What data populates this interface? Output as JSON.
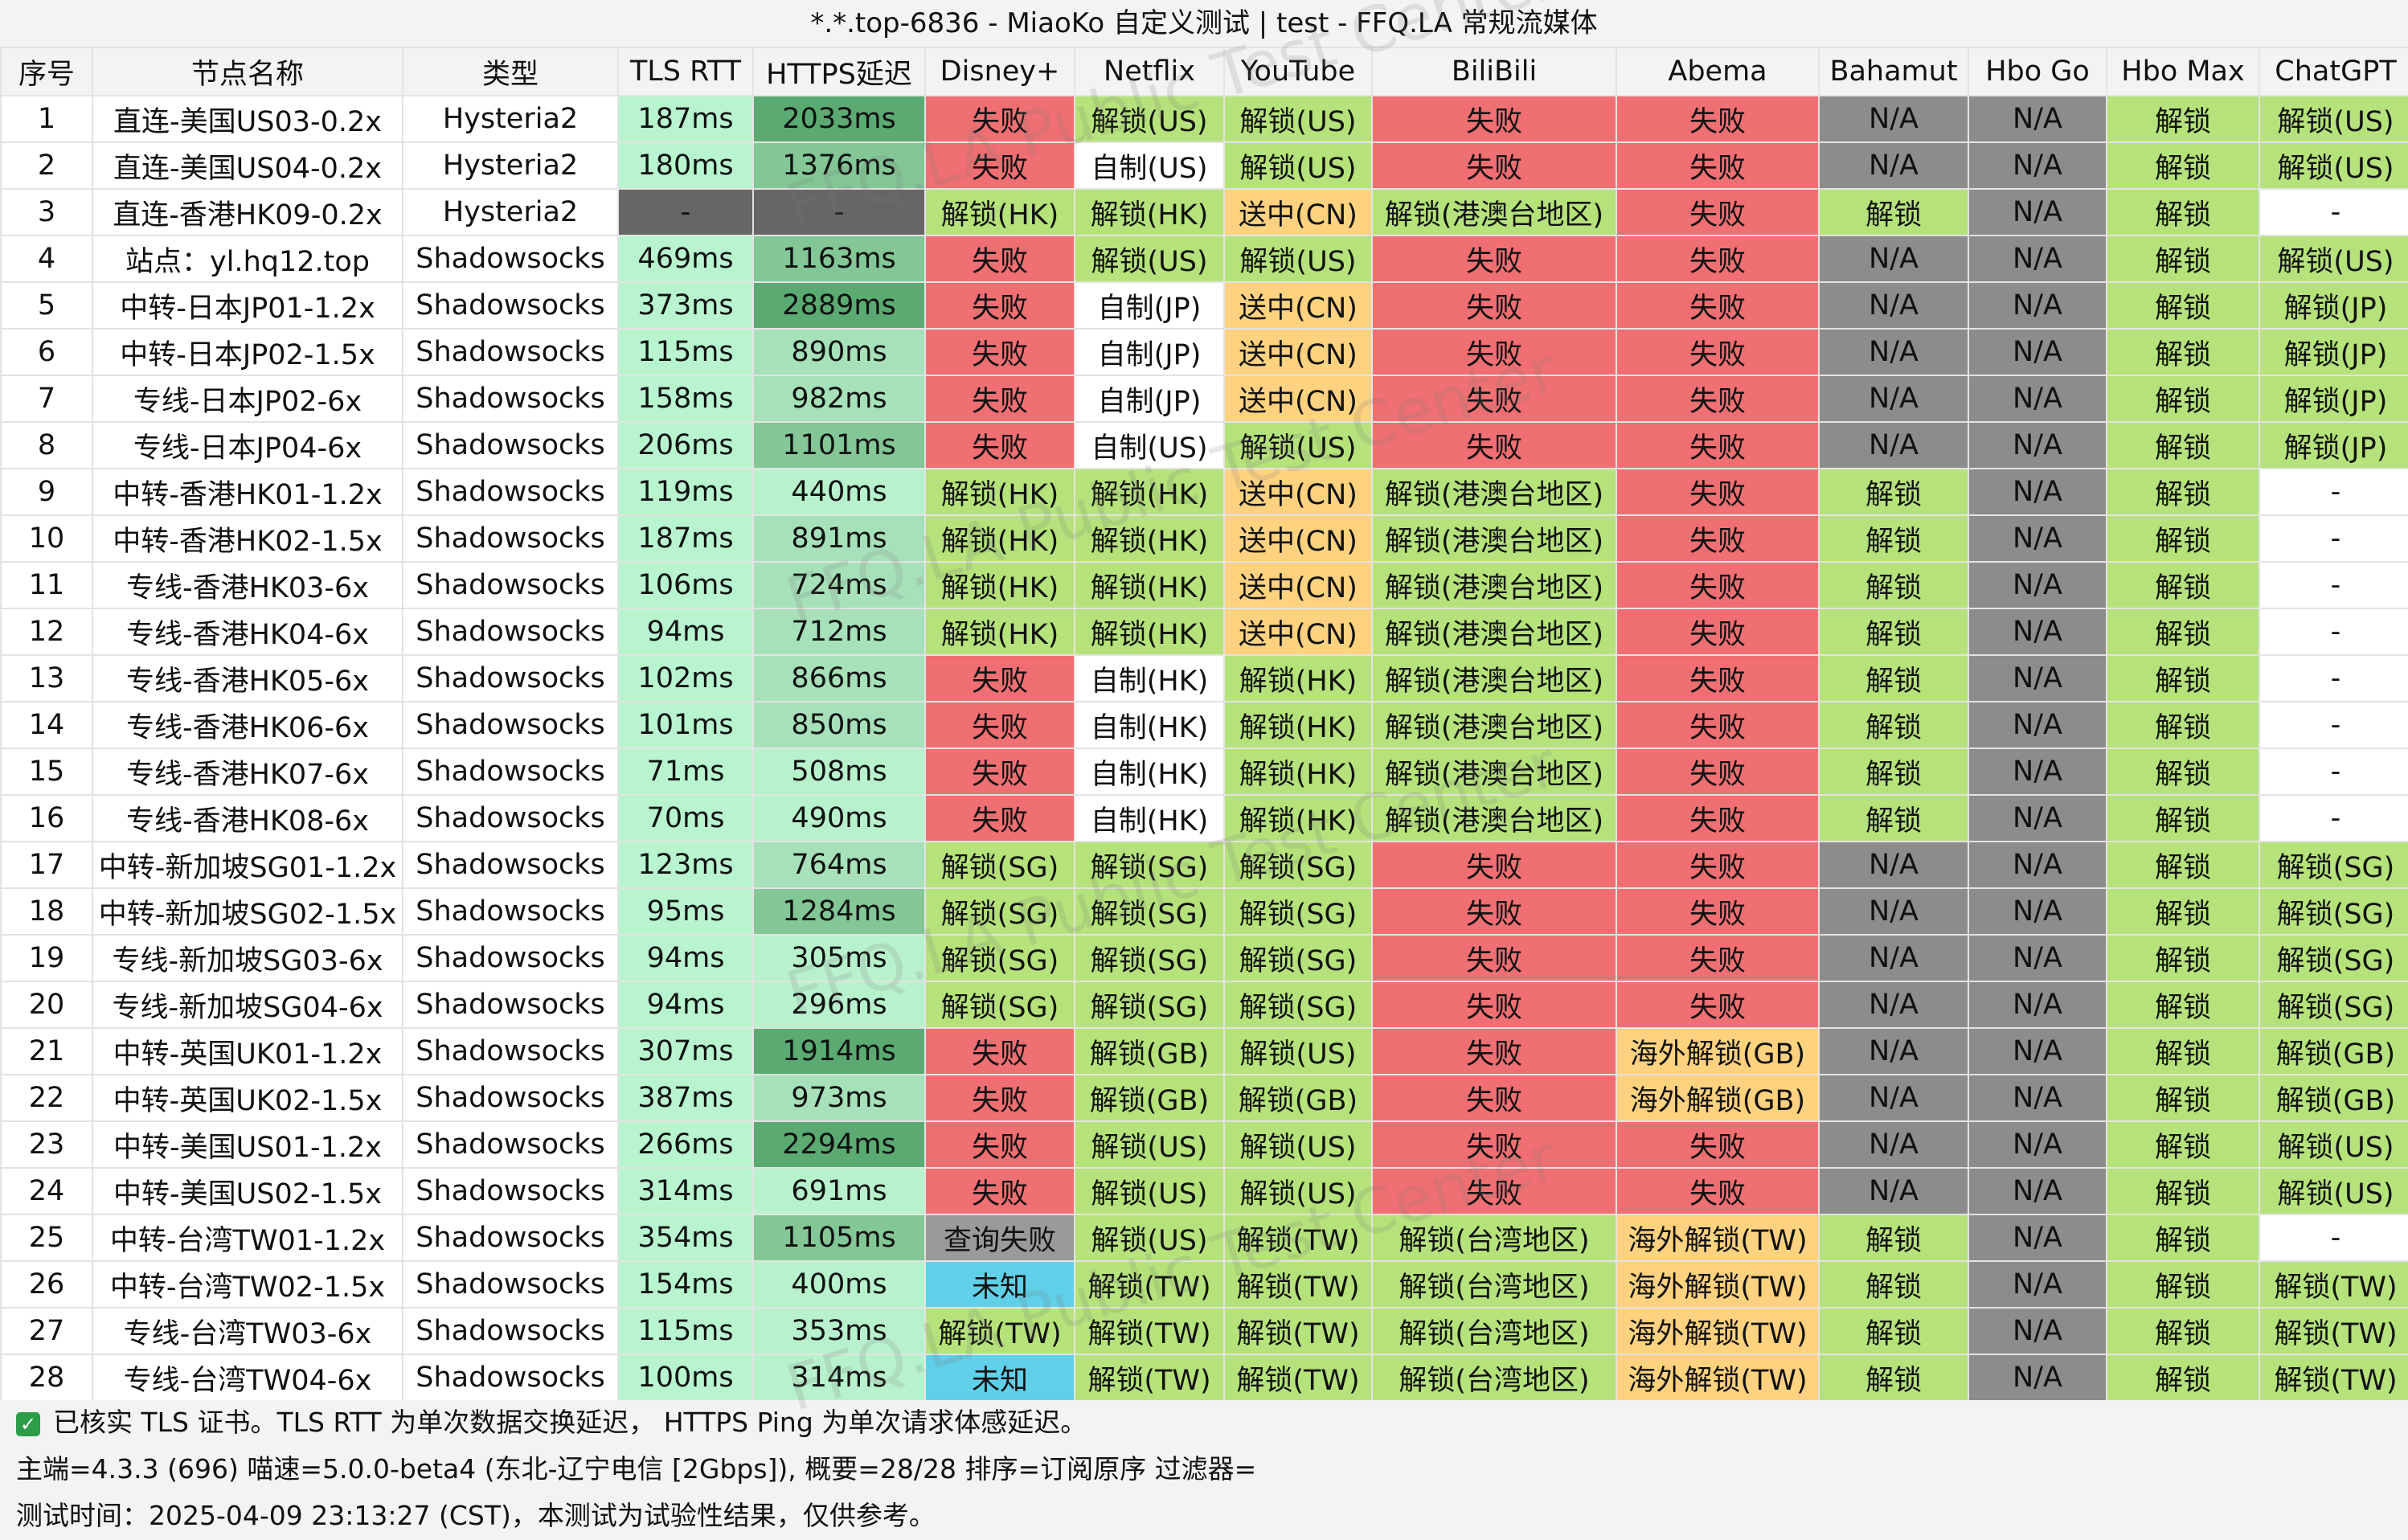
{
  "title": "*.*.top-6836 - MiaoKo 自定义测试 | test - FFQ.LA 常规流媒体",
  "table": {
    "headers": [
      "序号",
      "节点名称",
      "类型",
      "TLS RTT",
      "HTTPS延迟",
      "Disney+",
      "Netflix",
      "YouTube",
      "BiliBili",
      "Abema",
      "Bahamut",
      "Hbo Go",
      "Hbo Max",
      "ChatGPT"
    ],
    "rows": [
      [
        "1",
        "直连-美国US03-0.2x",
        "Hysteria2",
        "187ms",
        "2033ms",
        "失败",
        "解锁(US)",
        "解锁(US)",
        "失败",
        "失败",
        "N/A",
        "N/A",
        "解锁",
        "解锁(US)"
      ],
      [
        "2",
        "直连-美国US04-0.2x",
        "Hysteria2",
        "180ms",
        "1376ms",
        "失败",
        "自制(US)",
        "解锁(US)",
        "失败",
        "失败",
        "N/A",
        "N/A",
        "解锁",
        "解锁(US)"
      ],
      [
        "3",
        "直连-香港HK09-0.2x",
        "Hysteria2",
        "-",
        "-",
        "解锁(HK)",
        "解锁(HK)",
        "送中(CN)",
        "解锁(港澳台地区)",
        "失败",
        "解锁",
        "N/A",
        "解锁",
        "-"
      ],
      [
        "4",
        "站点：yl.hq12.top",
        "Shadowsocks",
        "469ms",
        "1163ms",
        "失败",
        "解锁(US)",
        "解锁(US)",
        "失败",
        "失败",
        "N/A",
        "N/A",
        "解锁",
        "解锁(US)"
      ],
      [
        "5",
        "中转-日本JP01-1.2x",
        "Shadowsocks",
        "373ms",
        "2889ms",
        "失败",
        "自制(JP)",
        "送中(CN)",
        "失败",
        "失败",
        "N/A",
        "N/A",
        "解锁",
        "解锁(JP)"
      ],
      [
        "6",
        "中转-日本JP02-1.5x",
        "Shadowsocks",
        "115ms",
        "890ms",
        "失败",
        "自制(JP)",
        "送中(CN)",
        "失败",
        "失败",
        "N/A",
        "N/A",
        "解锁",
        "解锁(JP)"
      ],
      [
        "7",
        "专线-日本JP02-6x",
        "Shadowsocks",
        "158ms",
        "982ms",
        "失败",
        "自制(JP)",
        "送中(CN)",
        "失败",
        "失败",
        "N/A",
        "N/A",
        "解锁",
        "解锁(JP)"
      ],
      [
        "8",
        "专线-日本JP04-6x",
        "Shadowsocks",
        "206ms",
        "1101ms",
        "失败",
        "自制(US)",
        "解锁(US)",
        "失败",
        "失败",
        "N/A",
        "N/A",
        "解锁",
        "解锁(JP)"
      ],
      [
        "9",
        "中转-香港HK01-1.2x",
        "Shadowsocks",
        "119ms",
        "440ms",
        "解锁(HK)",
        "解锁(HK)",
        "送中(CN)",
        "解锁(港澳台地区)",
        "失败",
        "解锁",
        "N/A",
        "解锁",
        "-"
      ],
      [
        "10",
        "中转-香港HK02-1.5x",
        "Shadowsocks",
        "187ms",
        "891ms",
        "解锁(HK)",
        "解锁(HK)",
        "送中(CN)",
        "解锁(港澳台地区)",
        "失败",
        "解锁",
        "N/A",
        "解锁",
        "-"
      ],
      [
        "11",
        "专线-香港HK03-6x",
        "Shadowsocks",
        "106ms",
        "724ms",
        "解锁(HK)",
        "解锁(HK)",
        "送中(CN)",
        "解锁(港澳台地区)",
        "失败",
        "解锁",
        "N/A",
        "解锁",
        "-"
      ],
      [
        "12",
        "专线-香港HK04-6x",
        "Shadowsocks",
        "94ms",
        "712ms",
        "解锁(HK)",
        "解锁(HK)",
        "送中(CN)",
        "解锁(港澳台地区)",
        "失败",
        "解锁",
        "N/A",
        "解锁",
        "-"
      ],
      [
        "13",
        "专线-香港HK05-6x",
        "Shadowsocks",
        "102ms",
        "866ms",
        "失败",
        "自制(HK)",
        "解锁(HK)",
        "解锁(港澳台地区)",
        "失败",
        "解锁",
        "N/A",
        "解锁",
        "-"
      ],
      [
        "14",
        "专线-香港HK06-6x",
        "Shadowsocks",
        "101ms",
        "850ms",
        "失败",
        "自制(HK)",
        "解锁(HK)",
        "解锁(港澳台地区)",
        "失败",
        "解锁",
        "N/A",
        "解锁",
        "-"
      ],
      [
        "15",
        "专线-香港HK07-6x",
        "Shadowsocks",
        "71ms",
        "508ms",
        "失败",
        "自制(HK)",
        "解锁(HK)",
        "解锁(港澳台地区)",
        "失败",
        "解锁",
        "N/A",
        "解锁",
        "-"
      ],
      [
        "16",
        "专线-香港HK08-6x",
        "Shadowsocks",
        "70ms",
        "490ms",
        "失败",
        "自制(HK)",
        "解锁(HK)",
        "解锁(港澳台地区)",
        "失败",
        "解锁",
        "N/A",
        "解锁",
        "-"
      ],
      [
        "17",
        "中转-新加坡SG01-1.2x",
        "Shadowsocks",
        "123ms",
        "764ms",
        "解锁(SG)",
        "解锁(SG)",
        "解锁(SG)",
        "失败",
        "失败",
        "N/A",
        "N/A",
        "解锁",
        "解锁(SG)"
      ],
      [
        "18",
        "中转-新加坡SG02-1.5x",
        "Shadowsocks",
        "95ms",
        "1284ms",
        "解锁(SG)",
        "解锁(SG)",
        "解锁(SG)",
        "失败",
        "失败",
        "N/A",
        "N/A",
        "解锁",
        "解锁(SG)"
      ],
      [
        "19",
        "专线-新加坡SG03-6x",
        "Shadowsocks",
        "94ms",
        "305ms",
        "解锁(SG)",
        "解锁(SG)",
        "解锁(SG)",
        "失败",
        "失败",
        "N/A",
        "N/A",
        "解锁",
        "解锁(SG)"
      ],
      [
        "20",
        "专线-新加坡SG04-6x",
        "Shadowsocks",
        "94ms",
        "296ms",
        "解锁(SG)",
        "解锁(SG)",
        "解锁(SG)",
        "失败",
        "失败",
        "N/A",
        "N/A",
        "解锁",
        "解锁(SG)"
      ],
      [
        "21",
        "中转-英国UK01-1.2x",
        "Shadowsocks",
        "307ms",
        "1914ms",
        "失败",
        "解锁(GB)",
        "解锁(US)",
        "失败",
        "海外解锁(GB)",
        "N/A",
        "N/A",
        "解锁",
        "解锁(GB)"
      ],
      [
        "22",
        "中转-英国UK02-1.5x",
        "Shadowsocks",
        "387ms",
        "973ms",
        "失败",
        "解锁(GB)",
        "解锁(GB)",
        "失败",
        "海外解锁(GB)",
        "N/A",
        "N/A",
        "解锁",
        "解锁(GB)"
      ],
      [
        "23",
        "中转-美国US01-1.2x",
        "Shadowsocks",
        "266ms",
        "2294ms",
        "失败",
        "解锁(US)",
        "解锁(US)",
        "失败",
        "失败",
        "N/A",
        "N/A",
        "解锁",
        "解锁(US)"
      ],
      [
        "24",
        "中转-美国US02-1.5x",
        "Shadowsocks",
        "314ms",
        "691ms",
        "失败",
        "解锁(US)",
        "解锁(US)",
        "失败",
        "失败",
        "N/A",
        "N/A",
        "解锁",
        "解锁(US)"
      ],
      [
        "25",
        "中转-台湾TW01-1.2x",
        "Shadowsocks",
        "354ms",
        "1105ms",
        "查询失败",
        "解锁(US)",
        "解锁(TW)",
        "解锁(台湾地区)",
        "海外解锁(TW)",
        "解锁",
        "N/A",
        "解锁",
        "-"
      ],
      [
        "26",
        "中转-台湾TW02-1.5x",
        "Shadowsocks",
        "154ms",
        "400ms",
        "未知",
        "解锁(TW)",
        "解锁(TW)",
        "解锁(台湾地区)",
        "海外解锁(TW)",
        "解锁",
        "N/A",
        "解锁",
        "解锁(TW)"
      ],
      [
        "27",
        "专线-台湾TW03-6x",
        "Shadowsocks",
        "115ms",
        "353ms",
        "解锁(TW)",
        "解锁(TW)",
        "解锁(TW)",
        "解锁(台湾地区)",
        "海外解锁(TW)",
        "解锁",
        "N/A",
        "解锁",
        "解锁(TW)"
      ],
      [
        "28",
        "专线-台湾TW04-6x",
        "Shadowsocks",
        "100ms",
        "314ms",
        "未知",
        "解锁(TW)",
        "解锁(TW)",
        "解锁(台湾地区)",
        "海外解锁(TW)",
        "解锁",
        "N/A",
        "解锁",
        "解锁(TW)"
      ]
    ]
  },
  "footer": {
    "cert_note": "已核实 TLS 证书。TLS RTT 为单次数据交换延迟， HTTPS Ping 为单次请求体感延迟。",
    "info": "主端=4.3.3 (696) 喵速=5.0.0-beta4 (东北-辽宁电信 [2Gbps]), 概要=28/28 排序=订阅原序 过滤器=",
    "test_time": "测试时间：2025-04-09 23:13:27 (CST)，本测试为试验性结果，仅供参考。"
  },
  "watermark": "FFQ.LA Public Test Center",
  "colors": {
    "fail": "#ef6f72",
    "unlock": "#b5e27a",
    "self_made": "#ffffff",
    "send_cn": "#ffd27f",
    "overseas": "#ffd27f",
    "na": "#8c8c8c",
    "unknown": "#5fd0e8",
    "query_fail": "#9a9a9a",
    "rtt_bg": "#b8f5cf",
    "no_data": "#666666"
  }
}
